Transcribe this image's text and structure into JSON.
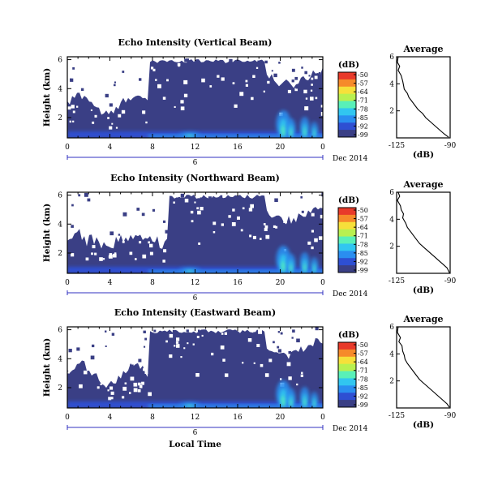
{
  "colors": {
    "background_echo": "#3a3f85",
    "line": "#000000",
    "axis_blue": "#3030c0",
    "colormap": [
      "#3a3f85",
      "#2e4fd2",
      "#2a8ef0",
      "#31c6f0",
      "#59f0b8",
      "#b8f050",
      "#f6e03a",
      "#f68a2a",
      "#e83a2a"
    ]
  },
  "chart_data": [
    {
      "type": "heatmap",
      "title": "Echo Intensity (Vertical Beam)",
      "ylabel": "Height (km)",
      "xticks": [
        "0",
        "4",
        "8",
        "12",
        "16",
        "20",
        "0"
      ],
      "yticks": [
        "2",
        "4",
        "6"
      ],
      "xlim": [
        0,
        24
      ],
      "ylim": [
        0.6,
        6.2
      ],
      "date_day": "6",
      "date_label": "Dec 2014",
      "colorbar": {
        "label": "(dB)",
        "ticks": [
          "-50",
          "-57",
          "-64",
          "-71",
          "-78",
          "-85",
          "-92",
          "-99"
        ]
      },
      "profile": {
        "title": "Average",
        "xlabel": "(dB)",
        "xticks": [
          "-125",
          "-90"
        ],
        "yticks": [
          "2",
          "4",
          "6"
        ],
        "xlim": [
          -125,
          -90
        ],
        "ylim": [
          0,
          6
        ],
        "x": [
          -124,
          -124.5,
          -123,
          -124,
          -122,
          -121,
          -120.5,
          -120,
          -118,
          -117,
          -115,
          -113,
          -111,
          -108,
          -106,
          -103,
          -100,
          -97,
          -94,
          -91
        ],
        "y": [
          6,
          5.6,
          5.3,
          5.0,
          4.6,
          4.2,
          3.9,
          3.6,
          3.3,
          3.0,
          2.7,
          2.4,
          2.1,
          1.8,
          1.5,
          1.2,
          0.9,
          0.6,
          0.3,
          0.05
        ]
      }
    },
    {
      "type": "heatmap",
      "title": "Echo Intensity (Northward Beam)",
      "ylabel": "Height (km)",
      "xticks": [
        "0",
        "4",
        "8",
        "12",
        "16",
        "20",
        "0"
      ],
      "yticks": [
        "2",
        "4",
        "6"
      ],
      "xlim": [
        0,
        24
      ],
      "ylim": [
        0.6,
        6.2
      ],
      "date_day": "6",
      "date_label": "Dec 2014",
      "colorbar": {
        "label": "(dB)",
        "ticks": [
          "-50",
          "-57",
          "-64",
          "-71",
          "-78",
          "-85",
          "-92",
          "-99"
        ]
      },
      "profile": {
        "title": "Average",
        "xlabel": "(dB)",
        "xticks": [
          "-125",
          "-90"
        ],
        "yticks": [
          "2",
          "4",
          "6"
        ],
        "xlim": [
          -125,
          -90
        ],
        "ylim": [
          0,
          6
        ],
        "x": [
          -124,
          -123,
          -124.5,
          -122.5,
          -122,
          -120.5,
          -121,
          -119,
          -118,
          -116,
          -114,
          -112,
          -110,
          -107,
          -104,
          -101,
          -98,
          -95,
          -92,
          -90.5
        ],
        "y": [
          6,
          5.7,
          5.4,
          5.0,
          4.7,
          4.4,
          4.1,
          3.7,
          3.4,
          3.1,
          2.8,
          2.5,
          2.2,
          1.9,
          1.6,
          1.3,
          1.0,
          0.7,
          0.4,
          0.05
        ]
      }
    },
    {
      "type": "heatmap",
      "title": "Echo Intensity (Eastward Beam)",
      "ylabel": "Height (km)",
      "xticks": [
        "0",
        "4",
        "8",
        "12",
        "16",
        "20",
        "0"
      ],
      "yticks": [
        "2",
        "4",
        "6"
      ],
      "xlim": [
        0,
        24
      ],
      "ylim": [
        0.6,
        6.2
      ],
      "date_day": "6",
      "date_label": "Dec 2014",
      "xlabel": "Local Time",
      "colorbar": {
        "label": "(dB)",
        "ticks": [
          "-50",
          "-57",
          "-64",
          "-71",
          "-78",
          "-85",
          "-92",
          "-99"
        ]
      },
      "profile": {
        "title": "Average",
        "xlabel": "(dB)",
        "xticks": [
          "-125",
          "-90"
        ],
        "yticks": [
          "2",
          "4",
          "6"
        ],
        "xlim": [
          -125,
          -90
        ],
        "ylim": [
          0,
          6
        ],
        "x": [
          -124,
          -124.5,
          -122.5,
          -123.5,
          -121.5,
          -121,
          -120,
          -119.5,
          -118,
          -116,
          -114,
          -112,
          -110,
          -107,
          -104,
          -101,
          -98,
          -95,
          -92,
          -90.5
        ],
        "y": [
          6,
          5.6,
          5.2,
          4.9,
          4.6,
          4.2,
          3.9,
          3.6,
          3.3,
          3.0,
          2.7,
          2.4,
          2.1,
          1.8,
          1.5,
          1.2,
          0.9,
          0.6,
          0.3,
          0.05
        ]
      }
    }
  ]
}
